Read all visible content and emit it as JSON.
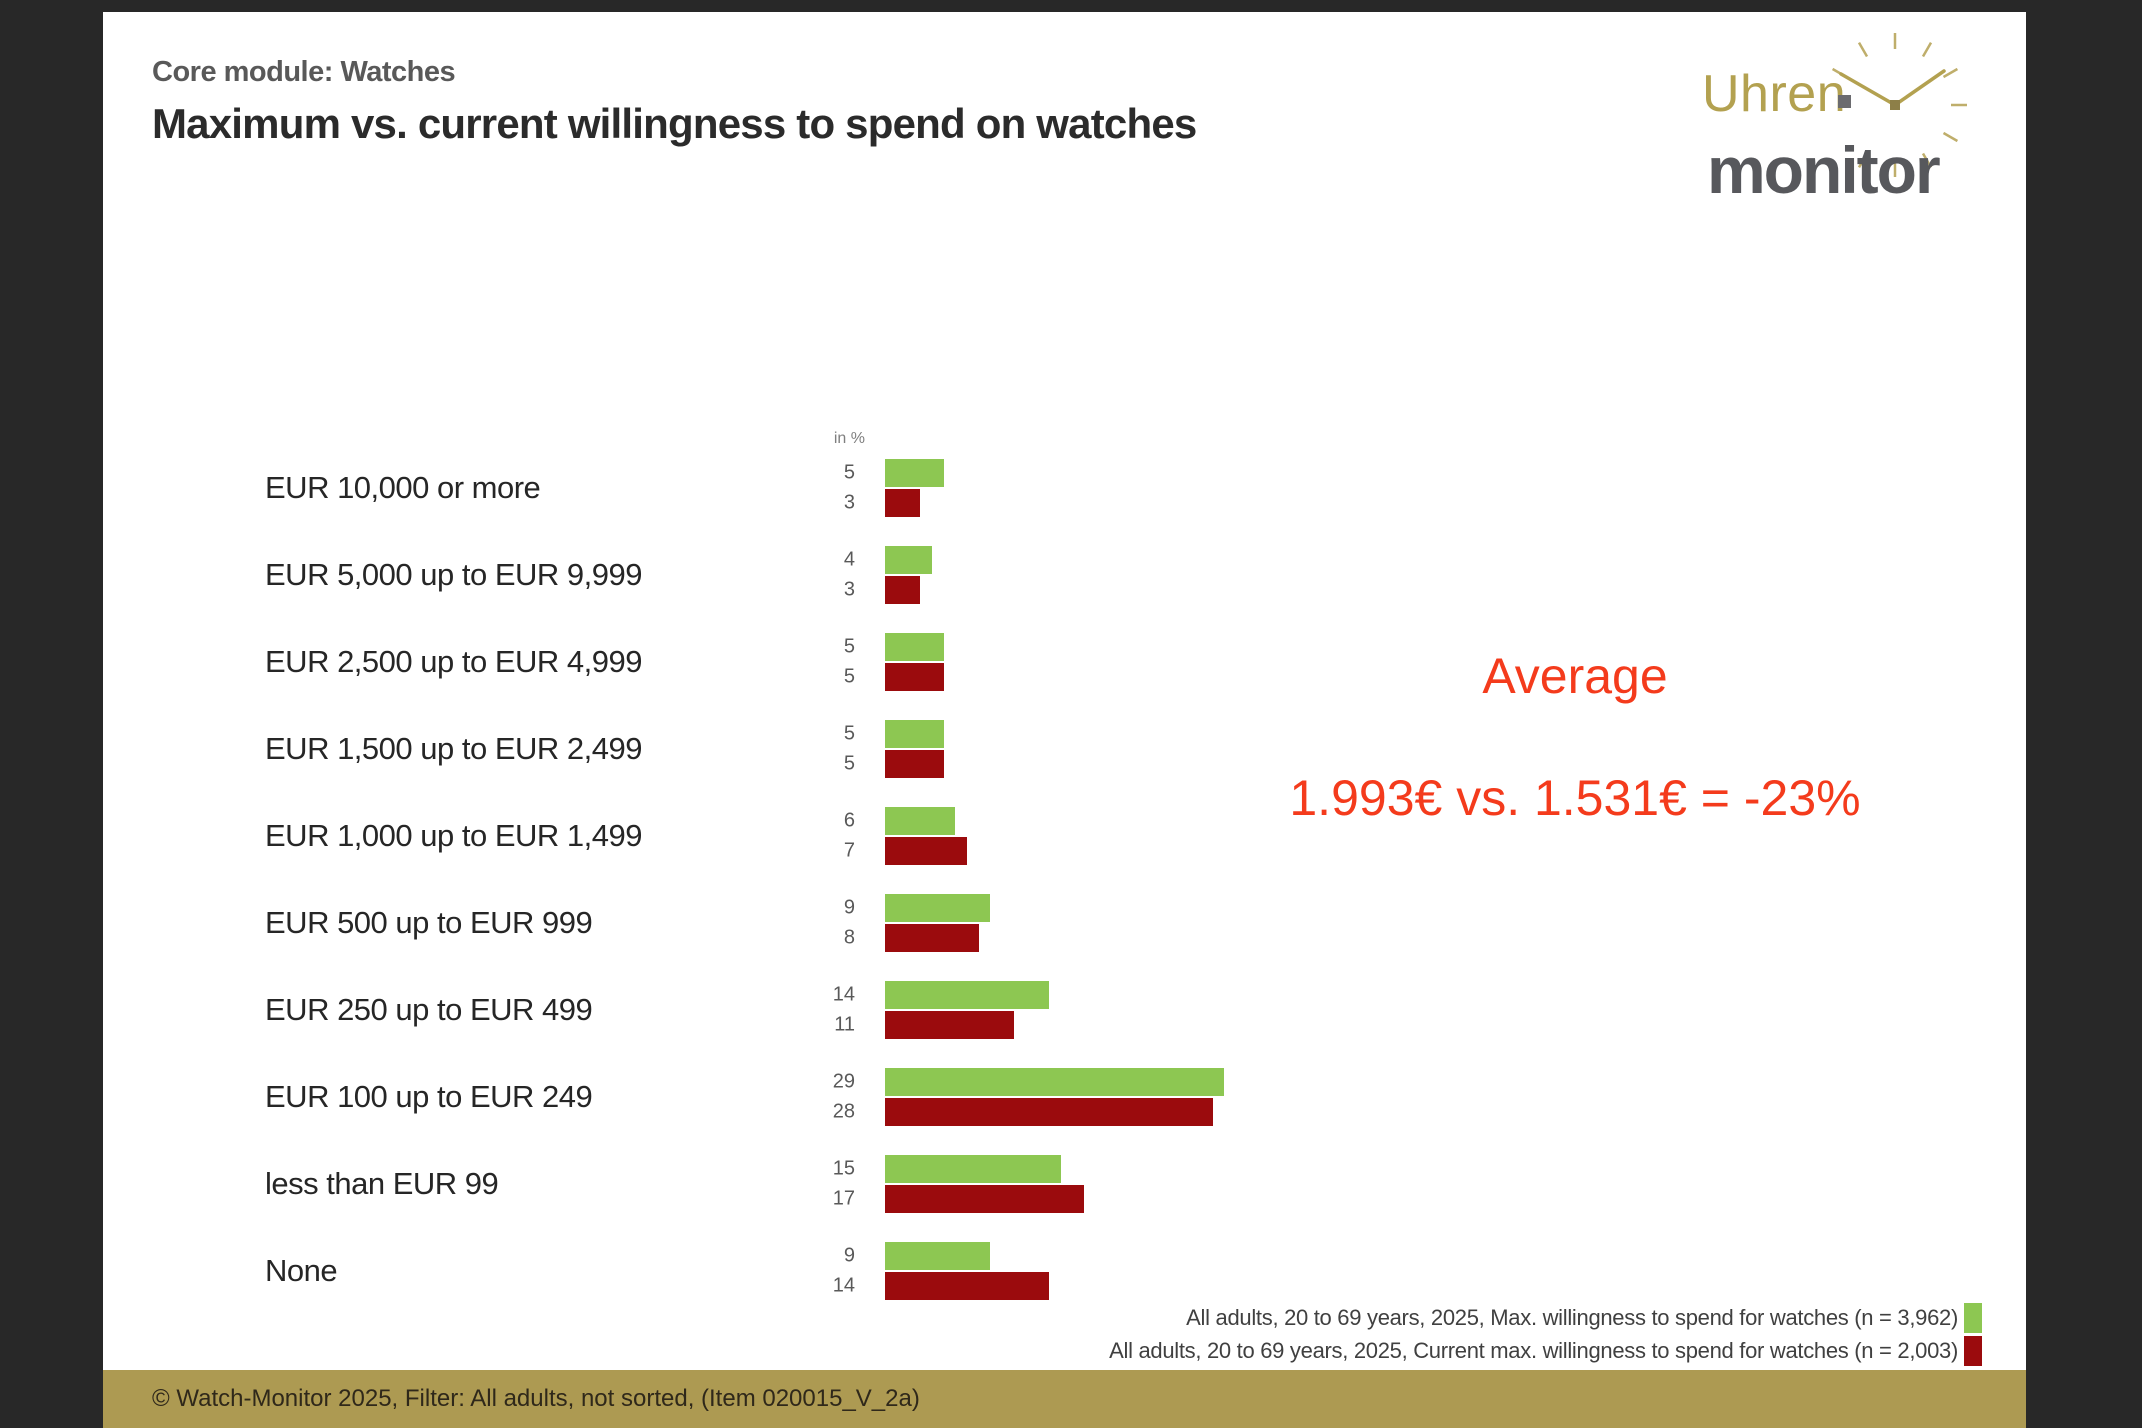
{
  "slide": {
    "kicker": "Core module: Watches",
    "title": "Maximum vs. current willingness to spend on watches",
    "footer": "© Watch-Monitor 2025, Filter: All adults, not sorted, (Item 020015_V_2a)"
  },
  "logo": {
    "word1": "Uhren",
    "word2": "monitor"
  },
  "average": {
    "heading": "Average",
    "detail": "1.993€ vs. 1.531€ = -23%"
  },
  "chart_data": {
    "type": "bar",
    "orientation": "horizontal",
    "title": "Maximum vs. current willingness to spend on watches",
    "units_label": "in %",
    "categories": [
      "EUR 10,000 or more",
      "EUR 5,000 up to EUR 9,999",
      "EUR 2,500 up to EUR 4,999",
      "EUR 1,500 up to EUR 2,499",
      "EUR 1,000 up to EUR 1,499",
      "EUR 500 up to EUR 999",
      "EUR 250 up to EUR 499",
      "EUR 100 up to EUR 249",
      "less than EUR 99",
      "None"
    ],
    "series": [
      {
        "name": "All adults, 20 to 69 years, 2025, Max. willingness to spend for watches (n = 3,962)",
        "color": "#8dc752",
        "values": [
          5,
          4,
          5,
          5,
          6,
          9,
          14,
          29,
          15,
          9
        ]
      },
      {
        "name": "All adults, 20 to 69 years, 2025, Current max. willingness to spend for watches (n = 2,003)",
        "color": "#9b0b0d",
        "values": [
          3,
          3,
          5,
          5,
          7,
          8,
          11,
          28,
          17,
          14
        ]
      }
    ],
    "xlim": [
      0,
      30
    ],
    "grid": false,
    "legend_position": "bottom-right"
  },
  "colors": {
    "highlight_red": "#f43b1c",
    "footer_band_gold": "#ad9a52",
    "logo_gold": "#b3a150",
    "logo_gray": "#57585c",
    "background_dark": "#282828"
  }
}
